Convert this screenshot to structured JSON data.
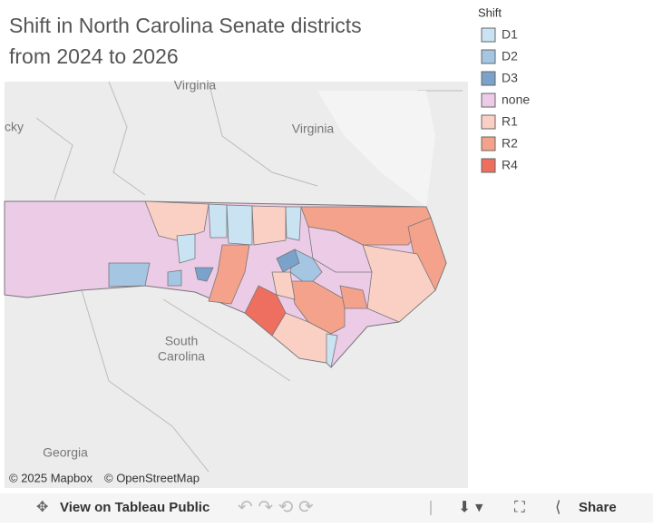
{
  "header": {
    "title": "Shift in North Carolina Senate districts from 2024 to 2026"
  },
  "legend": {
    "title": "Shift",
    "items": [
      {
        "label": "D1",
        "color": "#c9e3f3"
      },
      {
        "label": "D2",
        "color": "#a4c6e3"
      },
      {
        "label": "D3",
        "color": "#7aa2cb"
      },
      {
        "label": "none",
        "color": "#eccbe7"
      },
      {
        "label": "R1",
        "color": "#fbd0c4"
      },
      {
        "label": "R2",
        "color": "#f4a28b"
      },
      {
        "label": "R4",
        "color": "#ee6f5f"
      }
    ]
  },
  "map": {
    "labels": [
      {
        "lines": [
          "Virginia"
        ]
      },
      {
        "lines": [
          "Virginia"
        ]
      },
      {
        "lines": [
          "cky"
        ]
      },
      {
        "lines": [
          "South",
          "Carolina"
        ]
      },
      {
        "lines": [
          "Georgia"
        ]
      }
    ],
    "attribution": [
      "© 2025 Mapbox",
      "© OpenStreetMap"
    ]
  },
  "toolbar": {
    "view": "View on Tableau Public",
    "share": "Share"
  }
}
